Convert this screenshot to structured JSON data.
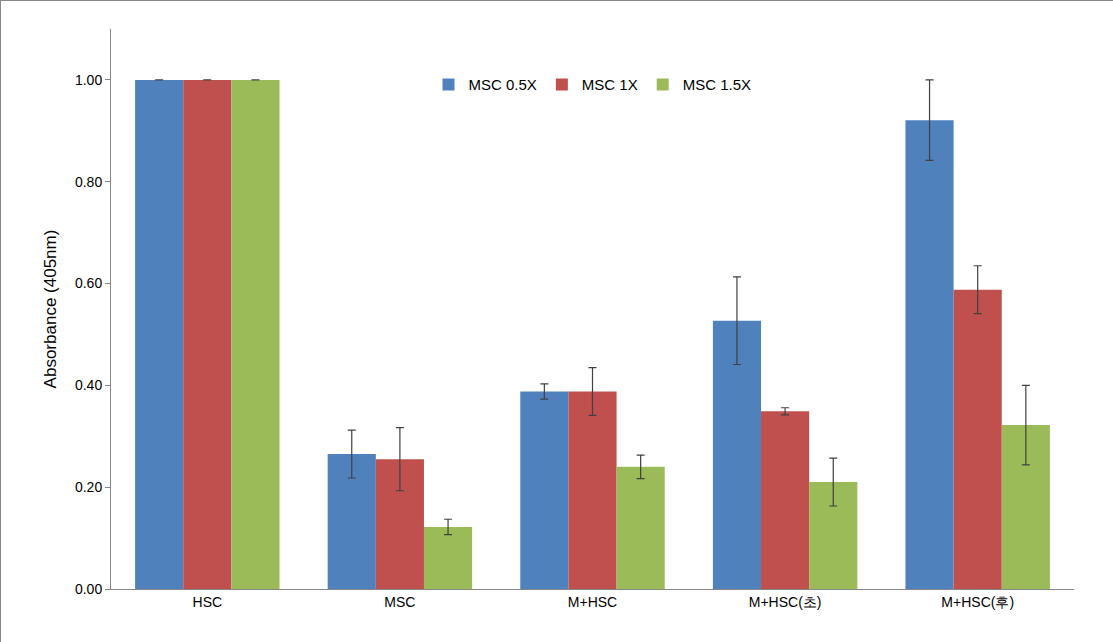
{
  "chart_data": {
    "type": "bar",
    "y_label": "Absorbance (405nm)",
    "categories": [
      "HSC",
      "MSC",
      "M+HSC",
      "M+HSC(초)",
      "M+HSC(후)"
    ],
    "series": [
      {
        "name": "MSC 0.5X",
        "color": "#4F81BD",
        "values": [
          1.0,
          0.265,
          0.388,
          0.527,
          0.921
        ],
        "errors": [
          0.0,
          0.047,
          0.015,
          0.086,
          0.079
        ]
      },
      {
        "name": "MSC 1X",
        "color": "#C0504D",
        "values": [
          1.0,
          0.255,
          0.388,
          0.349,
          0.588
        ],
        "errors": [
          0.0,
          0.062,
          0.047,
          0.007,
          0.047
        ]
      },
      {
        "name": "MSC 1.5X",
        "color": "#9BBB59",
        "values": [
          1.0,
          0.122,
          0.24,
          0.21,
          0.322
        ],
        "errors": [
          0.0,
          0.015,
          0.023,
          0.047,
          0.078
        ]
      }
    ],
    "ylim": [
      0,
      1.1
    ],
    "yticks": [
      {
        "value": 0,
        "label": "0.00"
      },
      {
        "value": 0.2,
        "label": "0.20"
      },
      {
        "value": 0.4,
        "label": "0.40"
      },
      {
        "value": 0.6,
        "label": "0.60"
      },
      {
        "value": 0.8,
        "label": "0.80"
      },
      {
        "value": 1.0,
        "label": "1.00"
      }
    ],
    "grid": false,
    "legend": "top"
  }
}
